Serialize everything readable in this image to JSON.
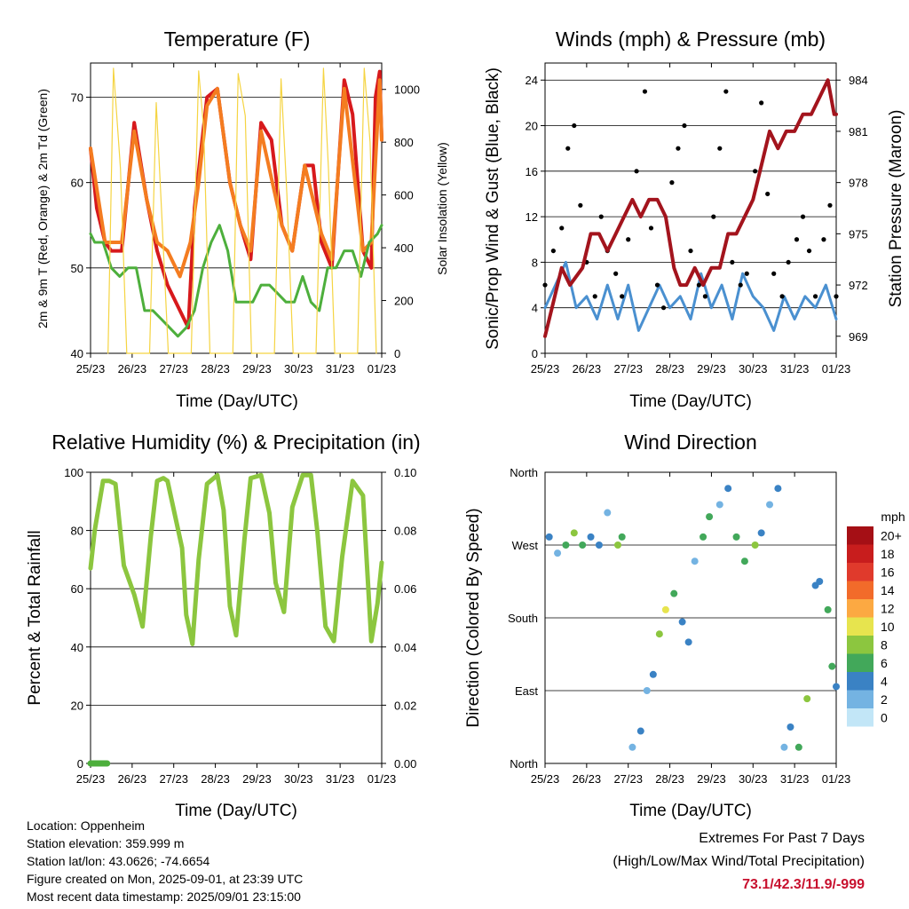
{
  "x_ticks": [
    "25/23",
    "26/23",
    "27/23",
    "28/23",
    "29/23",
    "30/23",
    "31/23",
    "01/23"
  ],
  "panels": {
    "temperature": {
      "title": "Temperature (F)",
      "xlabel": "Time (Day/UTC)",
      "ylabel_left": "2m & 9m T (Red, Orange) & 2m Td (Green)",
      "ylabel_right": "Solar Insolation (Yellow)"
    },
    "winds": {
      "title": "Winds (mph) & Pressure (mb)",
      "xlabel": "Time (Day/UTC)",
      "ylabel_left": "Sonic/Prop Wind & Gust (Blue, Black)",
      "ylabel_right": "Station Pressure (Maroon)"
    },
    "humidity": {
      "title": "Relative Humidity (%) & Precipitation (in)",
      "xlabel": "Time (Day/UTC)",
      "ylabel_left": "Percent & Total Rainfall"
    },
    "direction": {
      "title": "Wind Direction",
      "xlabel": "Time (Day/UTC)",
      "ylabel_left": "Direction (Colored By Speed)",
      "colorbar_title": "mph",
      "colorbar_labels": [
        "20+",
        "18",
        "16",
        "14",
        "12",
        "10",
        "8",
        "6",
        "4",
        "2",
        "0"
      ],
      "colorbar_colors": [
        "#a50f15",
        "#c81d1d",
        "#e03a2c",
        "#f26b2a",
        "#fca942",
        "#e7e44e",
        "#8cc63f",
        "#42a85a",
        "#3a82c4",
        "#74b3e2",
        "#c2e6f7"
      ]
    }
  },
  "info": {
    "location": "Location: Oppenheim",
    "elevation": "Station elevation: 359.999 m",
    "latlon": "Station lat/lon: 43.0626; -74.6654",
    "created": "Figure created on Mon, 2025-09-01, at 23:39 UTC",
    "recent": "Most recent data timestamp: 2025/09/01 23:15:00"
  },
  "extremes": {
    "heading": "Extremes For Past 7 Days",
    "subheading": "(High/Low/Max Wind/Total Precipitation)",
    "values": "73.1/42.3/11.9/-999"
  },
  "colors": {
    "temp2m": "#d7191c",
    "temp9m": "#f47c20",
    "dewpoint": "#4daf3c",
    "solar": "#f5d442",
    "wind": "#4a90d0",
    "gust": "#000000",
    "pressure": "#a3141d",
    "rh": "#8cc63f",
    "precip": "#4daf3c"
  },
  "chart_data": [
    {
      "type": "line",
      "title": "Temperature (F)",
      "xlabel": "Time (Day/UTC)",
      "ylabel": "2m & 9m T (Red, Orange) & 2m Td (Green)",
      "y2label": "Solar Insolation (Yellow)",
      "x_unit": "days since 25/23",
      "xlim": [
        0,
        7
      ],
      "ylim": [
        40,
        74
      ],
      "y_ticks": [
        40,
        50,
        60,
        70
      ],
      "y2lim": [
        0,
        1100
      ],
      "y2_ticks": [
        0,
        200,
        400,
        600,
        800,
        1000
      ],
      "grid": true,
      "series": [
        {
          "name": "2m T",
          "color": "#d7191c",
          "x": [
            0,
            0.15,
            0.35,
            0.5,
            0.75,
            1.05,
            1.35,
            1.6,
            1.85,
            2.15,
            2.35,
            2.5,
            2.8,
            3.05,
            3.35,
            3.6,
            3.85,
            4.1,
            4.35,
            4.6,
            4.85,
            5.15,
            5.35,
            5.55,
            5.8,
            6.1,
            6.3,
            6.55,
            6.75,
            6.85,
            6.95,
            7.0
          ],
          "y": [
            64,
            57,
            53,
            52,
            52,
            67,
            58,
            52,
            48,
            45,
            43,
            57,
            70,
            71,
            60,
            55,
            51,
            67,
            65,
            55,
            52,
            62,
            62,
            53,
            50,
            72,
            68,
            52,
            50,
            70,
            73,
            65
          ]
        },
        {
          "name": "9m T",
          "color": "#f47c20",
          "x": [
            0,
            0.35,
            0.75,
            1.05,
            1.35,
            1.6,
            1.85,
            2.15,
            2.4,
            2.6,
            2.8,
            3.05,
            3.35,
            3.6,
            3.85,
            4.1,
            4.6,
            4.85,
            5.15,
            5.55,
            5.8,
            6.1,
            6.55,
            6.75,
            6.95,
            7.0
          ],
          "y": [
            64,
            53,
            53,
            66,
            58,
            53,
            52,
            49,
            53,
            60,
            69,
            71,
            60,
            55,
            52,
            66,
            55,
            52,
            62,
            54,
            51,
            71,
            52,
            53,
            72,
            65
          ]
        },
        {
          "name": "2m Td",
          "color": "#4daf3c",
          "x": [
            0,
            0.1,
            0.3,
            0.5,
            0.7,
            0.9,
            1.1,
            1.3,
            1.5,
            1.7,
            1.9,
            2.1,
            2.3,
            2.5,
            2.7,
            2.9,
            3.1,
            3.3,
            3.5,
            3.7,
            3.9,
            4.1,
            4.3,
            4.5,
            4.7,
            4.9,
            5.1,
            5.3,
            5.5,
            5.7,
            5.9,
            6.1,
            6.3,
            6.5,
            6.7,
            6.9,
            7.0
          ],
          "y": [
            54,
            53,
            53,
            50,
            49,
            50,
            50,
            45,
            45,
            44,
            43,
            42,
            43,
            45,
            50,
            53,
            55,
            52,
            46,
            46,
            46,
            48,
            48,
            47,
            46,
            46,
            49,
            46,
            45,
            50,
            50,
            52,
            52,
            49,
            53,
            54,
            55
          ]
        },
        {
          "name": "Solar Insolation",
          "color": "#f5d442",
          "axis": "y2",
          "x": [
            0.42,
            0.55,
            0.72,
            0.87,
            1.42,
            1.58,
            1.72,
            1.87,
            2.42,
            2.6,
            2.72,
            2.87,
            3.42,
            3.55,
            3.72,
            3.87,
            4.42,
            4.58,
            4.72,
            4.87,
            5.42,
            5.6,
            5.72,
            5.87,
            6.42,
            6.58,
            6.72,
            6.87
          ],
          "y": [
            0,
            1080,
            700,
            0,
            0,
            950,
            500,
            0,
            0,
            1070,
            850,
            0,
            0,
            1060,
            900,
            0,
            0,
            1040,
            600,
            0,
            0,
            1080,
            700,
            0,
            0,
            1080,
            800,
            0
          ]
        }
      ]
    },
    {
      "type": "line",
      "title": "Winds (mph) & Pressure (mb)",
      "xlabel": "Time (Day/UTC)",
      "ylabel": "Sonic/Prop Wind & Gust (Blue, Black)",
      "y2label": "Station Pressure (Maroon)",
      "x_unit": "days since 25/23",
      "xlim": [
        0,
        7
      ],
      "ylim": [
        0,
        25.5
      ],
      "y_ticks": [
        0,
        4,
        8,
        12,
        16,
        20,
        24
      ],
      "y2lim": [
        968,
        985
      ],
      "y2_ticks": [
        969,
        972,
        975,
        978,
        981,
        984
      ],
      "grid": true,
      "series": [
        {
          "name": "Wind",
          "color": "#4a90d0",
          "x": [
            0,
            0.25,
            0.5,
            0.75,
            1.0,
            1.25,
            1.5,
            1.75,
            2.0,
            2.25,
            2.5,
            2.75,
            3.0,
            3.25,
            3.5,
            3.75,
            4.0,
            4.25,
            4.5,
            4.75,
            5.0,
            5.25,
            5.5,
            5.75,
            6.0,
            6.25,
            6.5,
            6.75,
            7.0
          ],
          "y": [
            4,
            6,
            8,
            4,
            5,
            3,
            6,
            3,
            6,
            2,
            4,
            6,
            4,
            5,
            3,
            7,
            4,
            6,
            3,
            7,
            5,
            4,
            2,
            5,
            3,
            5,
            4,
            6,
            3
          ]
        },
        {
          "name": "Gust",
          "color": "#000000",
          "style": "points",
          "x": [
            0,
            0.2,
            0.4,
            0.55,
            0.7,
            0.85,
            1.0,
            1.2,
            1.35,
            1.5,
            1.7,
            1.85,
            2.0,
            2.2,
            2.4,
            2.55,
            2.7,
            2.85,
            3.05,
            3.2,
            3.35,
            3.5,
            3.7,
            3.85,
            4.05,
            4.2,
            4.35,
            4.5,
            4.7,
            4.85,
            5.05,
            5.2,
            5.35,
            5.5,
            5.7,
            5.85,
            6.05,
            6.2,
            6.35,
            6.5,
            6.7,
            6.85,
            7.0
          ],
          "y": [
            6,
            9,
            11,
            18,
            20,
            13,
            8,
            5,
            12,
            9,
            7,
            5,
            10,
            16,
            23,
            11,
            6,
            4,
            15,
            18,
            20,
            9,
            6,
            5,
            12,
            18,
            23,
            8,
            6,
            7,
            16,
            22,
            14,
            7,
            5,
            8,
            10,
            12,
            9,
            5,
            10,
            13,
            5
          ]
        },
        {
          "name": "Station Pressure",
          "color": "#a3141d",
          "axis": "y2",
          "x": [
            0,
            0.2,
            0.4,
            0.6,
            0.9,
            1.1,
            1.3,
            1.5,
            1.7,
            1.9,
            2.1,
            2.3,
            2.5,
            2.7,
            2.9,
            3.1,
            3.25,
            3.4,
            3.6,
            3.8,
            4.0,
            4.2,
            4.4,
            4.6,
            4.8,
            5.0,
            5.2,
            5.4,
            5.6,
            5.8,
            6.0,
            6.2,
            6.4,
            6.6,
            6.8,
            6.95,
            7.0
          ],
          "y": [
            969,
            971,
            973,
            972,
            973,
            975,
            975,
            974,
            975,
            976,
            977,
            976,
            977,
            977,
            976,
            973,
            972,
            972,
            973,
            972,
            973,
            973,
            975,
            975,
            976,
            977,
            979,
            981,
            980,
            981,
            981,
            982,
            982,
            983,
            984,
            982,
            982
          ]
        }
      ]
    },
    {
      "type": "line",
      "title": "Relative Humidity (%) & Precipitation (in)",
      "xlabel": "Time (Day/UTC)",
      "ylabel": "Percent & Total Rainfall",
      "x_unit": "days since 25/23",
      "xlim": [
        0,
        7
      ],
      "ylim": [
        0,
        100
      ],
      "y_ticks": [
        0,
        20,
        40,
        60,
        80,
        100
      ],
      "y2lim": [
        0,
        0.1
      ],
      "y2_ticks": [
        0.0,
        0.02,
        0.04,
        0.06,
        0.08,
        0.1
      ],
      "grid": true,
      "series": [
        {
          "name": "Relative Humidity",
          "color": "#8cc63f",
          "x": [
            0,
            0.1,
            0.3,
            0.45,
            0.6,
            0.8,
            1.05,
            1.25,
            1.45,
            1.6,
            1.75,
            1.85,
            2.2,
            2.3,
            2.45,
            2.6,
            2.8,
            3.05,
            3.2,
            3.35,
            3.5,
            3.7,
            3.85,
            4.1,
            4.3,
            4.45,
            4.65,
            4.85,
            5.1,
            5.3,
            5.45,
            5.65,
            5.85,
            6.05,
            6.3,
            6.55,
            6.75,
            6.9,
            7.0
          ],
          "y": [
            67,
            80,
            97,
            97,
            96,
            68,
            58,
            47,
            78,
            97,
            98,
            97,
            74,
            51,
            41,
            70,
            96,
            99,
            87,
            54,
            44,
            77,
            98,
            99,
            86,
            62,
            52,
            88,
            99,
            99,
            80,
            47,
            42,
            71,
            97,
            92,
            42,
            55,
            69
          ]
        },
        {
          "name": "Total Rainfall",
          "color": "#4daf3c",
          "axis": "y2",
          "x": [
            0,
            0.4
          ],
          "y": [
            0,
            0
          ]
        }
      ]
    },
    {
      "type": "scatter",
      "title": "Wind Direction",
      "xlabel": "Time (Day/UTC)",
      "ylabel": "Direction (Colored By Speed)",
      "x_unit": "days since 25/23",
      "xlim": [
        0,
        7
      ],
      "ylim": [
        0,
        360
      ],
      "y_tick_labels": [
        "North",
        "East",
        "South",
        "West",
        "North"
      ],
      "colorbar": {
        "title": "mph",
        "range": [
          0,
          20
        ]
      },
      "grid": true,
      "series": [
        {
          "name": "Direction",
          "x": [
            0.1,
            0.3,
            0.5,
            0.7,
            0.9,
            1.1,
            1.3,
            1.5,
            1.75,
            1.85,
            2.1,
            2.3,
            2.45,
            2.6,
            2.75,
            2.9,
            3.1,
            3.3,
            3.45,
            3.6,
            3.8,
            3.95,
            4.2,
            4.4,
            4.6,
            4.8,
            5.05,
            5.2,
            5.4,
            5.6,
            5.75,
            5.9,
            6.1,
            6.3,
            6.5,
            6.6,
            6.8,
            6.9,
            7.0
          ],
          "y": [
            280,
            260,
            270,
            285,
            270,
            280,
            270,
            310,
            270,
            280,
            20,
            40,
            90,
            110,
            160,
            190,
            210,
            175,
            150,
            250,
            280,
            305,
            320,
            340,
            280,
            250,
            270,
            285,
            320,
            340,
            20,
            45,
            20,
            80,
            220,
            225,
            190,
            120,
            95
          ],
          "speed": [
            4,
            3,
            7,
            8,
            6,
            4,
            5,
            3,
            8,
            6,
            2,
            4,
            3,
            4,
            9,
            11,
            6,
            4,
            5,
            3,
            6,
            7,
            3,
            5,
            6,
            7,
            9,
            5,
            3,
            4,
            2,
            4,
            6,
            8,
            5,
            4,
            6,
            7,
            5
          ]
        }
      ]
    }
  ]
}
